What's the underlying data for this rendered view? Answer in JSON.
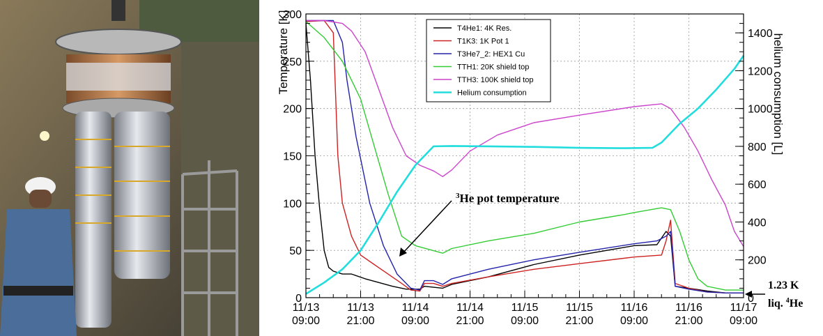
{
  "photo": {
    "description_icon": "cryostat-photo"
  },
  "chart_data": {
    "type": "line",
    "ylabel": "Temperature [K]",
    "y2label": "helium consumption [L]",
    "ylim": [
      0,
      300
    ],
    "y2lim": [
      0,
      1500
    ],
    "yticks": [
      0,
      50,
      100,
      150,
      200,
      250,
      300
    ],
    "y2ticks": [
      0,
      200,
      400,
      600,
      800,
      1000,
      1200,
      1400
    ],
    "x_ticks": [
      {
        "h": 0,
        "date": "11/13",
        "time": "09:00"
      },
      {
        "h": 12,
        "date": "11/13",
        "time": "21:00"
      },
      {
        "h": 24,
        "date": "11/14",
        "time": "09:00"
      },
      {
        "h": 36,
        "date": "11/14",
        "time": "21:00"
      },
      {
        "h": 48,
        "date": "11/15",
        "time": "09:00"
      },
      {
        "h": 60,
        "date": "11/15",
        "time": "21:00"
      },
      {
        "h": 72,
        "date": "11/16",
        "time": "09:00"
      },
      {
        "h": 84,
        "date": "11/16",
        "time": "21:00"
      },
      {
        "h": 96,
        "date": "11/17",
        "time": "09:00"
      }
    ],
    "xlim": [
      0,
      96
    ],
    "grid": true,
    "legend_position": "top-left",
    "series": [
      {
        "name": "T4He1: 4K Res.",
        "color": "#000000",
        "axis": "left",
        "points": [
          [
            0,
            290
          ],
          [
            1,
            230
          ],
          [
            2,
            150
          ],
          [
            3,
            95
          ],
          [
            4,
            50
          ],
          [
            5,
            32
          ],
          [
            6,
            28
          ],
          [
            8,
            25
          ],
          [
            10,
            25
          ],
          [
            13,
            20
          ],
          [
            16,
            16
          ],
          [
            19,
            12
          ],
          [
            22,
            9
          ],
          [
            25,
            9
          ],
          [
            26,
            12
          ],
          [
            28,
            11
          ],
          [
            30,
            10
          ],
          [
            32,
            14
          ],
          [
            40,
            22
          ],
          [
            50,
            35
          ],
          [
            60,
            45
          ],
          [
            66,
            50
          ],
          [
            72,
            55
          ],
          [
            77,
            56
          ],
          [
            79,
            70
          ],
          [
            80,
            65
          ],
          [
            81,
            12
          ],
          [
            84,
            10
          ],
          [
            88,
            7
          ],
          [
            92,
            5
          ],
          [
            96,
            5
          ]
        ]
      },
      {
        "name": "T1K3: 1K Pot 1",
        "color": "#cc2222",
        "axis": "left",
        "points": [
          [
            0,
            292
          ],
          [
            4,
            293
          ],
          [
            6,
            280
          ],
          [
            7,
            150
          ],
          [
            8,
            100
          ],
          [
            10,
            65
          ],
          [
            12,
            45
          ],
          [
            15,
            35
          ],
          [
            18,
            25
          ],
          [
            21,
            15
          ],
          [
            23,
            8
          ],
          [
            25,
            7
          ],
          [
            26,
            15
          ],
          [
            28,
            15
          ],
          [
            30,
            12
          ],
          [
            32,
            15
          ],
          [
            40,
            22
          ],
          [
            50,
            30
          ],
          [
            60,
            36
          ],
          [
            72,
            43
          ],
          [
            78,
            45
          ],
          [
            79,
            60
          ],
          [
            80,
            82
          ],
          [
            81,
            15
          ],
          [
            84,
            10
          ],
          [
            88,
            6
          ],
          [
            92,
            5
          ],
          [
            96,
            5
          ]
        ]
      },
      {
        "name": "T3He7_2: HEX1 Cu",
        "color": "#2222aa",
        "axis": "left",
        "points": [
          [
            0,
            293
          ],
          [
            6,
            293
          ],
          [
            8,
            270
          ],
          [
            9,
            230
          ],
          [
            11,
            170
          ],
          [
            14,
            100
          ],
          [
            17,
            55
          ],
          [
            20,
            25
          ],
          [
            23,
            10
          ],
          [
            25,
            8
          ],
          [
            26,
            18
          ],
          [
            28,
            18
          ],
          [
            30,
            14
          ],
          [
            32,
            20
          ],
          [
            40,
            30
          ],
          [
            50,
            40
          ],
          [
            60,
            48
          ],
          [
            72,
            57
          ],
          [
            77,
            60
          ],
          [
            79,
            65
          ],
          [
            80,
            70
          ],
          [
            81,
            12
          ],
          [
            84,
            9
          ],
          [
            88,
            6
          ],
          [
            92,
            5
          ],
          [
            96,
            5
          ]
        ]
      },
      {
        "name": "TTH1: 20K shield top",
        "color": "#33cc33",
        "axis": "left",
        "points": [
          [
            0,
            292
          ],
          [
            4,
            275
          ],
          [
            8,
            250
          ],
          [
            12,
            210
          ],
          [
            15,
            160
          ],
          [
            18,
            110
          ],
          [
            21,
            65
          ],
          [
            24,
            55
          ],
          [
            30,
            47
          ],
          [
            32,
            52
          ],
          [
            40,
            60
          ],
          [
            50,
            68
          ],
          [
            60,
            80
          ],
          [
            70,
            88
          ],
          [
            72,
            90
          ],
          [
            78,
            95
          ],
          [
            80,
            93
          ],
          [
            82,
            70
          ],
          [
            84,
            40
          ],
          [
            86,
            20
          ],
          [
            88,
            12
          ],
          [
            92,
            8
          ],
          [
            96,
            8
          ]
        ]
      },
      {
        "name": "TTH3: 100K shield top",
        "color": "#cc44cc",
        "axis": "left",
        "points": [
          [
            0,
            293
          ],
          [
            4,
            293
          ],
          [
            8,
            290
          ],
          [
            10,
            282
          ],
          [
            13,
            260
          ],
          [
            16,
            220
          ],
          [
            19,
            180
          ],
          [
            22,
            150
          ],
          [
            25,
            140
          ],
          [
            28,
            134
          ],
          [
            30,
            128
          ],
          [
            32,
            135
          ],
          [
            36,
            155
          ],
          [
            42,
            172
          ],
          [
            50,
            185
          ],
          [
            60,
            193
          ],
          [
            72,
            202
          ],
          [
            78,
            205
          ],
          [
            80,
            200
          ],
          [
            83,
            180
          ],
          [
            86,
            155
          ],
          [
            89,
            125
          ],
          [
            92,
            98
          ],
          [
            94,
            70
          ],
          [
            96,
            54
          ]
        ]
      },
      {
        "name": "Helium consumption",
        "color": "#22dddd",
        "axis": "right",
        "points": [
          [
            0,
            20
          ],
          [
            4,
            80
          ],
          [
            8,
            150
          ],
          [
            12,
            250
          ],
          [
            16,
            400
          ],
          [
            20,
            560
          ],
          [
            24,
            700
          ],
          [
            28,
            800
          ],
          [
            32,
            802
          ],
          [
            40,
            800
          ],
          [
            50,
            797
          ],
          [
            60,
            792
          ],
          [
            70,
            790
          ],
          [
            76,
            792
          ],
          [
            78,
            820
          ],
          [
            82,
            920
          ],
          [
            86,
            1000
          ],
          [
            90,
            1100
          ],
          [
            94,
            1210
          ],
          [
            96,
            1280
          ]
        ]
      }
    ],
    "annotations": [
      {
        "text": "3He pot temperature",
        "sup": "3",
        "rest": "He pot temperature"
      },
      {
        "text": "1.23 K"
      },
      {
        "text": "liq. 4He",
        "pre": "liq. ",
        "sup": "4",
        "rest": "He"
      }
    ]
  }
}
